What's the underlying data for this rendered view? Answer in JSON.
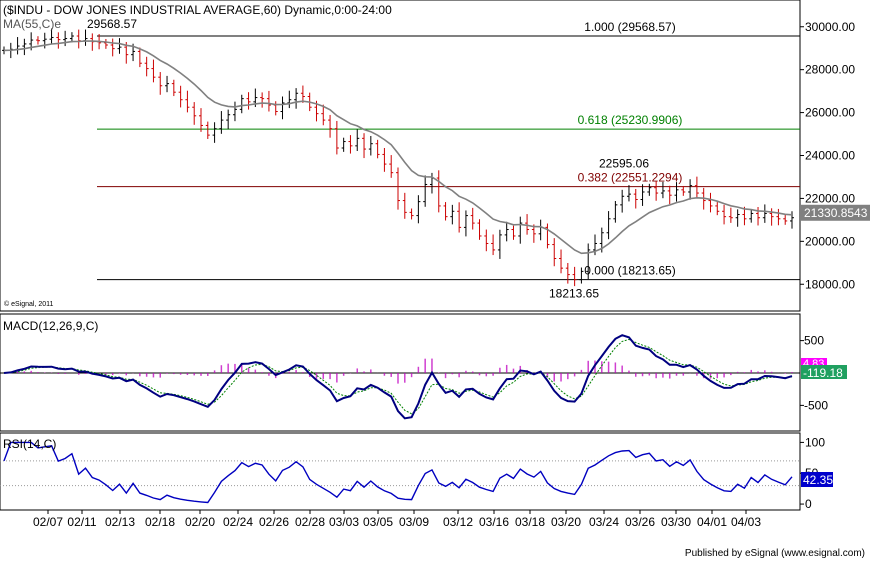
{
  "chart_data": {
    "type": "line",
    "title": "($INDU - DOW JONES INDUSTRIAL AVERAGE,60) Dynamic,0:00-24:00",
    "copyright": "© eSignal, 2011",
    "footer": "Published by eSignal (www.esignal.com)",
    "x_tick_labels": [
      "02/07",
      "02/11",
      "02/13",
      "02/18",
      "02/20",
      "02/24",
      "02/26",
      "02/28",
      "03/03",
      "03/05",
      "03/09",
      "03/12",
      "03/16",
      "03/18",
      "03/20",
      "03/24",
      "03/26",
      "03/30",
      "04/01",
      "04/03"
    ],
    "price_panel": {
      "ma_label": "MA(55,C)e",
      "ylim": [
        16800,
        31200
      ],
      "y_ticks": [
        18000,
        20000,
        22000,
        24000,
        26000,
        28000,
        30000
      ],
      "y_tick_labels": [
        "18000.00",
        "20000.00",
        "22000.00",
        "24000.00",
        "26000.00",
        "28000.00",
        "30000.00"
      ],
      "last_price_label": "21330.8543",
      "fib_levels": [
        {
          "label": "1.000 (29568.57)",
          "value": 29568.57,
          "color": "#000000"
        },
        {
          "label": "0.618 (25230.9906)",
          "value": 25230.9906,
          "color": "#008000"
        },
        {
          "label": "0.382 (22551.2294)",
          "value": 22551.2294,
          "color": "#800000"
        },
        {
          "label": "0.000 (18213.65)",
          "value": 18213.65,
          "color": "#000000"
        }
      ],
      "annotations": [
        {
          "text": "29568.57",
          "value": 29568.57
        },
        {
          "text": "22595.06",
          "value": 22595.06
        },
        {
          "text": "18213.65",
          "value": 18213.65
        }
      ],
      "closes": [
        28900,
        28950,
        29100,
        29200,
        29380,
        29350,
        29420,
        29500,
        29400,
        29450,
        29568,
        29350,
        29450,
        29300,
        29250,
        29150,
        28980,
        29050,
        28700,
        28850,
        28300,
        28050,
        27650,
        27250,
        27350,
        26950,
        26600,
        26250,
        25850,
        25400,
        24950,
        25250,
        25650,
        25900,
        26150,
        26650,
        26500,
        26700,
        26650,
        26350,
        26050,
        26450,
        26600,
        26900,
        26750,
        26250,
        25950,
        25650,
        25250,
        24350,
        24650,
        24450,
        24800,
        24300,
        24550,
        24050,
        23600,
        23200,
        21900,
        21350,
        21200,
        21850,
        22650,
        22950,
        21650,
        21150,
        21400,
        20650,
        21200,
        20850,
        20250,
        19900,
        19600,
        20300,
        20550,
        20250,
        20850,
        20550,
        20350,
        20650,
        19850,
        19200,
        18750,
        18450,
        18213,
        18600,
        19600,
        19900,
        20400,
        21050,
        21700,
        22100,
        22200,
        21950,
        22300,
        22500,
        22250,
        22350,
        22150,
        22400,
        22300,
        22595,
        22250,
        21900,
        21650,
        21400,
        21150,
        21100,
        21250,
        21050,
        21300,
        21100,
        21300,
        21150,
        21050,
        20950,
        21100
      ]
    },
    "macd_panel": {
      "label": "MACD(12,26,9,C)",
      "params": [
        12,
        26,
        9
      ],
      "ylim": [
        -880,
        880
      ],
      "y_ticks": [
        500,
        -500
      ],
      "y_tick_labels": [
        "500",
        "-500"
      ],
      "last_macd_label": "-119.18",
      "last_hist_label": "4.83",
      "histogram_color": "#c000c0",
      "macd_color": "#000080",
      "signal_color": "#008000"
    },
    "rsi_panel": {
      "label": "RSI(14,C)",
      "period": 14,
      "ylim": [
        -8,
        112
      ],
      "y_ticks": [
        100,
        50,
        0
      ],
      "y_tick_labels": [
        "100",
        "50",
        "0"
      ],
      "levels": [
        70,
        30
      ],
      "last_label": "42.35",
      "line_color": "#0000c0"
    }
  }
}
